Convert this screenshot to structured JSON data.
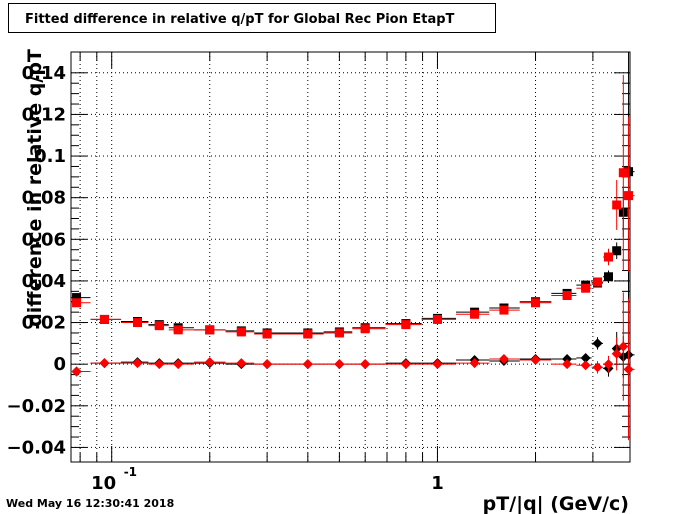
{
  "chart_data": {
    "type": "scatter",
    "title": "Fitted difference in relative q/pT for Global Rec Pion EtapT",
    "xlabel": "pT/|q| (GeV/c)",
    "ylabel": "difference in relative q/pT",
    "x_scale": "log",
    "xlim": [
      0.075,
      3.9
    ],
    "ylim": [
      -0.047,
      0.15
    ],
    "x_ticks": [
      {
        "value": 0.1,
        "label": "10",
        "exponent": "-1"
      },
      {
        "value": 1,
        "label": "1",
        "exponent": ""
      }
    ],
    "y_ticks": [
      -0.04,
      -0.02,
      0,
      0.02,
      0.04,
      0.06,
      0.08,
      0.1,
      0.12,
      0.14
    ],
    "y_tick_labels": [
      "−0.04",
      "−0.02",
      "0",
      "0.02",
      "0.04",
      "0.06",
      "0.08",
      "0.1",
      "0.12",
      "0.14"
    ],
    "grid": true,
    "series": [
      {
        "marker": "square",
        "color": "#000000",
        "points": [
          {
            "x": 0.078,
            "y": 0.032,
            "err": 0.002
          },
          {
            "x": 0.095,
            "y": 0.0215,
            "err": 0.001
          },
          {
            "x": 0.12,
            "y": 0.0205,
            "err": 0.001
          },
          {
            "x": 0.14,
            "y": 0.019,
            "err": 0.001
          },
          {
            "x": 0.16,
            "y": 0.0175,
            "err": 0.001
          },
          {
            "x": 0.2,
            "y": 0.0165,
            "err": 0.001
          },
          {
            "x": 0.25,
            "y": 0.016,
            "err": 0.001
          },
          {
            "x": 0.3,
            "y": 0.015,
            "err": 0.001
          },
          {
            "x": 0.4,
            "y": 0.015,
            "err": 0.001
          },
          {
            "x": 0.5,
            "y": 0.0155,
            "err": 0.001
          },
          {
            "x": 0.6,
            "y": 0.0175,
            "err": 0.001
          },
          {
            "x": 0.8,
            "y": 0.0195,
            "err": 0.001
          },
          {
            "x": 1.0,
            "y": 0.022,
            "err": 0.001
          },
          {
            "x": 1.3,
            "y": 0.025,
            "err": 0.001
          },
          {
            "x": 1.6,
            "y": 0.027,
            "err": 0.001
          },
          {
            "x": 2.0,
            "y": 0.03,
            "err": 0.001
          },
          {
            "x": 2.5,
            "y": 0.034,
            "err": 0.001
          },
          {
            "x": 2.85,
            "y": 0.038,
            "err": 0.002
          },
          {
            "x": 3.1,
            "y": 0.039,
            "err": 0.002
          },
          {
            "x": 3.35,
            "y": 0.042,
            "err": 0.003
          },
          {
            "x": 3.55,
            "y": 0.0545,
            "err": 0.004
          },
          {
            "x": 3.72,
            "y": 0.073,
            "err": 0.012
          },
          {
            "x": 3.86,
            "y": 0.0925,
            "err": 0.06
          }
        ]
      },
      {
        "marker": "square",
        "color": "#ff0000",
        "points": [
          {
            "x": 0.078,
            "y": 0.0295,
            "err": 0.002
          },
          {
            "x": 0.095,
            "y": 0.0215,
            "err": 0.001
          },
          {
            "x": 0.12,
            "y": 0.02,
            "err": 0.001
          },
          {
            "x": 0.14,
            "y": 0.0185,
            "err": 0.001
          },
          {
            "x": 0.16,
            "y": 0.0165,
            "err": 0.001
          },
          {
            "x": 0.2,
            "y": 0.0165,
            "err": 0.001
          },
          {
            "x": 0.25,
            "y": 0.0155,
            "err": 0.001
          },
          {
            "x": 0.3,
            "y": 0.0145,
            "err": 0.001
          },
          {
            "x": 0.4,
            "y": 0.0145,
            "err": 0.001
          },
          {
            "x": 0.5,
            "y": 0.015,
            "err": 0.001
          },
          {
            "x": 0.6,
            "y": 0.017,
            "err": 0.001
          },
          {
            "x": 0.8,
            "y": 0.019,
            "err": 0.001
          },
          {
            "x": 1.0,
            "y": 0.0215,
            "err": 0.001
          },
          {
            "x": 1.3,
            "y": 0.024,
            "err": 0.001
          },
          {
            "x": 1.6,
            "y": 0.026,
            "err": 0.001
          },
          {
            "x": 2.0,
            "y": 0.0295,
            "err": 0.001
          },
          {
            "x": 2.5,
            "y": 0.033,
            "err": 0.001
          },
          {
            "x": 2.85,
            "y": 0.0365,
            "err": 0.002
          },
          {
            "x": 3.1,
            "y": 0.0395,
            "err": 0.002
          },
          {
            "x": 3.35,
            "y": 0.0515,
            "err": 0.004
          },
          {
            "x": 3.55,
            "y": 0.0765,
            "err": 0.012
          },
          {
            "x": 3.72,
            "y": 0.092,
            "err": 0.047
          },
          {
            "x": 3.86,
            "y": 0.081,
            "err": 0.038
          }
        ]
      },
      {
        "marker": "diamond",
        "color": "#000000",
        "points": [
          {
            "x": 0.078,
            "y": -0.0035,
            "err": 0.001
          },
          {
            "x": 0.095,
            "y": 0.0005,
            "err": 0.001
          },
          {
            "x": 0.12,
            "y": 0.001,
            "err": 0.001
          },
          {
            "x": 0.14,
            "y": 0.0005,
            "err": 0.001
          },
          {
            "x": 0.16,
            "y": 0.0005,
            "err": 0.001
          },
          {
            "x": 0.2,
            "y": 0.0005,
            "err": 0.001
          },
          {
            "x": 0.25,
            "y": 0.0,
            "err": 0.001
          },
          {
            "x": 0.3,
            "y": 0.0,
            "err": 0.001
          },
          {
            "x": 0.4,
            "y": 0.0,
            "err": 0.001
          },
          {
            "x": 0.5,
            "y": 0.0,
            "err": 0.001
          },
          {
            "x": 0.6,
            "y": 0.0,
            "err": 0.001
          },
          {
            "x": 0.8,
            "y": 0.0005,
            "err": 0.001
          },
          {
            "x": 1.0,
            "y": 0.0005,
            "err": 0.001
          },
          {
            "x": 1.3,
            "y": 0.002,
            "err": 0.001
          },
          {
            "x": 1.6,
            "y": 0.0015,
            "err": 0.001
          },
          {
            "x": 2.0,
            "y": 0.0025,
            "err": 0.001
          },
          {
            "x": 2.5,
            "y": 0.0025,
            "err": 0.002
          },
          {
            "x": 2.85,
            "y": 0.003,
            "err": 0.002
          },
          {
            "x": 3.1,
            "y": 0.01,
            "err": 0.003
          },
          {
            "x": 3.35,
            "y": -0.002,
            "err": 0.004
          },
          {
            "x": 3.55,
            "y": 0.0075,
            "err": 0.008
          },
          {
            "x": 3.72,
            "y": 0.0035,
            "err": 0.01
          },
          {
            "x": 3.86,
            "y": 0.0045,
            "err": 0.04
          }
        ]
      },
      {
        "marker": "diamond",
        "color": "#ff0000",
        "points": [
          {
            "x": 0.078,
            "y": -0.0035,
            "err": 0.001
          },
          {
            "x": 0.095,
            "y": 0.0005,
            "err": 0.001
          },
          {
            "x": 0.12,
            "y": 0.0005,
            "err": 0.001
          },
          {
            "x": 0.14,
            "y": 0.0,
            "err": 0.001
          },
          {
            "x": 0.16,
            "y": 0.0,
            "err": 0.001
          },
          {
            "x": 0.2,
            "y": 0.001,
            "err": 0.001
          },
          {
            "x": 0.25,
            "y": 0.0005,
            "err": 0.001
          },
          {
            "x": 0.3,
            "y": 0.0,
            "err": 0.001
          },
          {
            "x": 0.4,
            "y": 0.0,
            "err": 0.001
          },
          {
            "x": 0.5,
            "y": 0.0,
            "err": 0.001
          },
          {
            "x": 0.6,
            "y": 0.0,
            "err": 0.001
          },
          {
            "x": 0.8,
            "y": 0.0,
            "err": 0.001
          },
          {
            "x": 1.0,
            "y": 0.0,
            "err": 0.001
          },
          {
            "x": 1.3,
            "y": 0.0005,
            "err": 0.001
          },
          {
            "x": 1.6,
            "y": 0.0025,
            "err": 0.001
          },
          {
            "x": 2.0,
            "y": 0.002,
            "err": 0.001
          },
          {
            "x": 2.5,
            "y": 0.0,
            "err": 0.002
          },
          {
            "x": 2.85,
            "y": -0.0005,
            "err": 0.002
          },
          {
            "x": 3.1,
            "y": -0.0015,
            "err": 0.003
          },
          {
            "x": 3.35,
            "y": 0.0,
            "err": 0.004
          },
          {
            "x": 3.55,
            "y": 0.005,
            "err": 0.008
          },
          {
            "x": 3.72,
            "y": 0.0085,
            "err": 0.026
          },
          {
            "x": 3.86,
            "y": -0.0025,
            "err": 0.034
          }
        ]
      }
    ]
  },
  "timestamp": "Wed May 16 12:30:41 2018"
}
